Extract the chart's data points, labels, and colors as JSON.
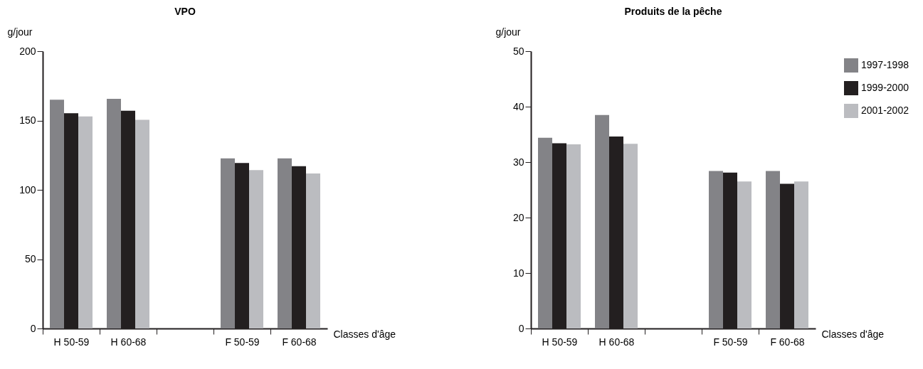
{
  "chart_data": [
    {
      "type": "bar",
      "title": "VPO",
      "ylabel": "g/jour",
      "xlabel": "Classes d'âge",
      "categories": [
        "H 50-59",
        "H 60-68",
        null,
        "F 50-59",
        "F 60-68"
      ],
      "ylim": [
        0,
        200
      ],
      "yticks": [
        0,
        50,
        100,
        150,
        200
      ],
      "grid": false,
      "legend": false,
      "series": [
        {
          "color": "#838387",
          "values": [
            165,
            165.6,
            null,
            122.7,
            122.7
          ]
        },
        {
          "color": "#231f20",
          "values": [
            155.2,
            157.1,
            null,
            119.4,
            117
          ]
        },
        {
          "color": "#bbbcc0",
          "values": [
            152.9,
            150.5,
            null,
            114.2,
            111.8
          ]
        }
      ]
    },
    {
      "type": "bar",
      "title": "Produits de la pêche",
      "ylabel": "g/jour",
      "xlabel": "Classes d'âge",
      "categories": [
        "H 50-59",
        "H 60-68",
        null,
        "F 50-59",
        "F 60-68"
      ],
      "ylim": [
        0,
        50
      ],
      "yticks": [
        0,
        10,
        20,
        30,
        40,
        50
      ],
      "grid": false,
      "legend": "top right",
      "series": [
        {
          "name": "1997-1998",
          "color": "#838387",
          "values": [
            34.4,
            38.5,
            null,
            28.4,
            28.4
          ]
        },
        {
          "name": "1999-2000",
          "color": "#231f20",
          "values": [
            33.4,
            34.6,
            null,
            28.1,
            26.1
          ]
        },
        {
          "name": "2001-2002",
          "color": "#bbbcc0",
          "values": [
            33.2,
            33.3,
            null,
            26.5,
            26.5
          ]
        }
      ]
    }
  ]
}
